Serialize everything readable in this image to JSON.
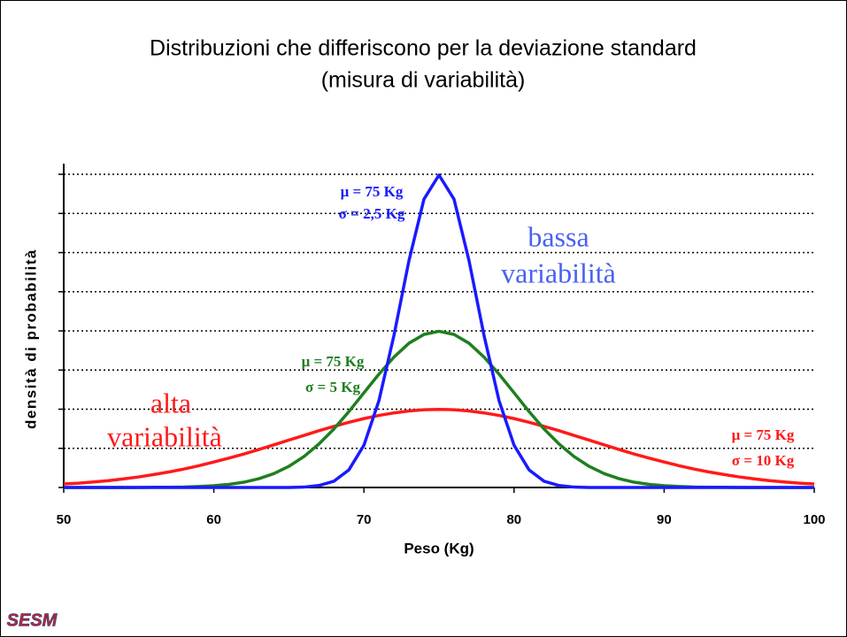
{
  "chart_data": {
    "type": "line",
    "title": "Distribuzioni che differiscono per la deviazione standard",
    "subtitle": "(misura di variabilità)",
    "x_label": "Peso (Kg)",
    "y_label": "densità di probabilità",
    "x": [
      50,
      51,
      52,
      53,
      54,
      55,
      56,
      57,
      58,
      59,
      60,
      61,
      62,
      63,
      64,
      65,
      66,
      67,
      68,
      69,
      70,
      71,
      72,
      73,
      74,
      75,
      76,
      77,
      78,
      79,
      80,
      81,
      82,
      83,
      84,
      85,
      86,
      87,
      88,
      89,
      90,
      91,
      92,
      93,
      94,
      95,
      96,
      97,
      98,
      99,
      100
    ],
    "xlim": [
      50,
      100
    ],
    "xticks": [
      50,
      60,
      70,
      80,
      90,
      100
    ],
    "ylim": [
      0,
      0.16
    ],
    "yticks": [
      0,
      0.02,
      0.04,
      0.06,
      0.08,
      0.1,
      0.12,
      0.14,
      0.16
    ],
    "grid": true,
    "series": [
      {
        "name": "σ = 2,5 Kg",
        "color": "#1a1aff",
        "values": [
          0,
          0,
          0,
          0,
          0,
          0,
          0,
          0,
          0,
          0,
          0,
          0,
          0,
          0,
          0,
          0,
          0.0002,
          0.001,
          0.0032,
          0.009,
          0.0216,
          0.0444,
          0.0777,
          0.1159,
          0.1473,
          0.1596,
          0.1473,
          0.1159,
          0.0777,
          0.0444,
          0.0216,
          0.009,
          0.0032,
          0.001,
          0.0002,
          0,
          0,
          0,
          0,
          0,
          0,
          0,
          0,
          0,
          0,
          0,
          0,
          0,
          0,
          0,
          0
        ]
      },
      {
        "name": "σ = 5 Kg",
        "color": "#1f7f1f",
        "values": [
          0,
          0,
          0,
          0,
          0,
          0,
          0.0001,
          0.0001,
          0.0002,
          0.0005,
          0.0009,
          0.0016,
          0.0027,
          0.0045,
          0.0071,
          0.0108,
          0.0158,
          0.0222,
          0.0299,
          0.0388,
          0.0484,
          0.0579,
          0.0666,
          0.0737,
          0.0782,
          0.0798,
          0.0782,
          0.0737,
          0.0666,
          0.0579,
          0.0484,
          0.0388,
          0.0299,
          0.0222,
          0.0158,
          0.0108,
          0.0071,
          0.0045,
          0.0027,
          0.0016,
          0.0009,
          0.0005,
          0.0002,
          0.0001,
          0.0001,
          0,
          0,
          0,
          0,
          0,
          0
        ]
      },
      {
        "name": "σ = 10 Kg",
        "color": "#ff1a1a",
        "values": [
          0.0018,
          0.0022,
          0.0028,
          0.0035,
          0.0044,
          0.0054,
          0.0066,
          0.0079,
          0.0094,
          0.0111,
          0.013,
          0.015,
          0.0171,
          0.0194,
          0.0218,
          0.0242,
          0.0266,
          0.029,
          0.0312,
          0.0333,
          0.0352,
          0.0368,
          0.0381,
          0.0391,
          0.0397,
          0.0399,
          0.0397,
          0.0391,
          0.0381,
          0.0368,
          0.0352,
          0.0333,
          0.0312,
          0.029,
          0.0266,
          0.0242,
          0.0218,
          0.0194,
          0.0171,
          0.015,
          0.013,
          0.0111,
          0.0094,
          0.0079,
          0.0066,
          0.0054,
          0.0044,
          0.0035,
          0.0028,
          0.0022,
          0.0018
        ]
      }
    ],
    "annotations": [
      "μ = 75 Kg",
      "μ = 75 Kg",
      "μ = 75 Kg",
      "bassa",
      "variabilità",
      "alta",
      "variabilità"
    ],
    "logo": "SESM"
  }
}
